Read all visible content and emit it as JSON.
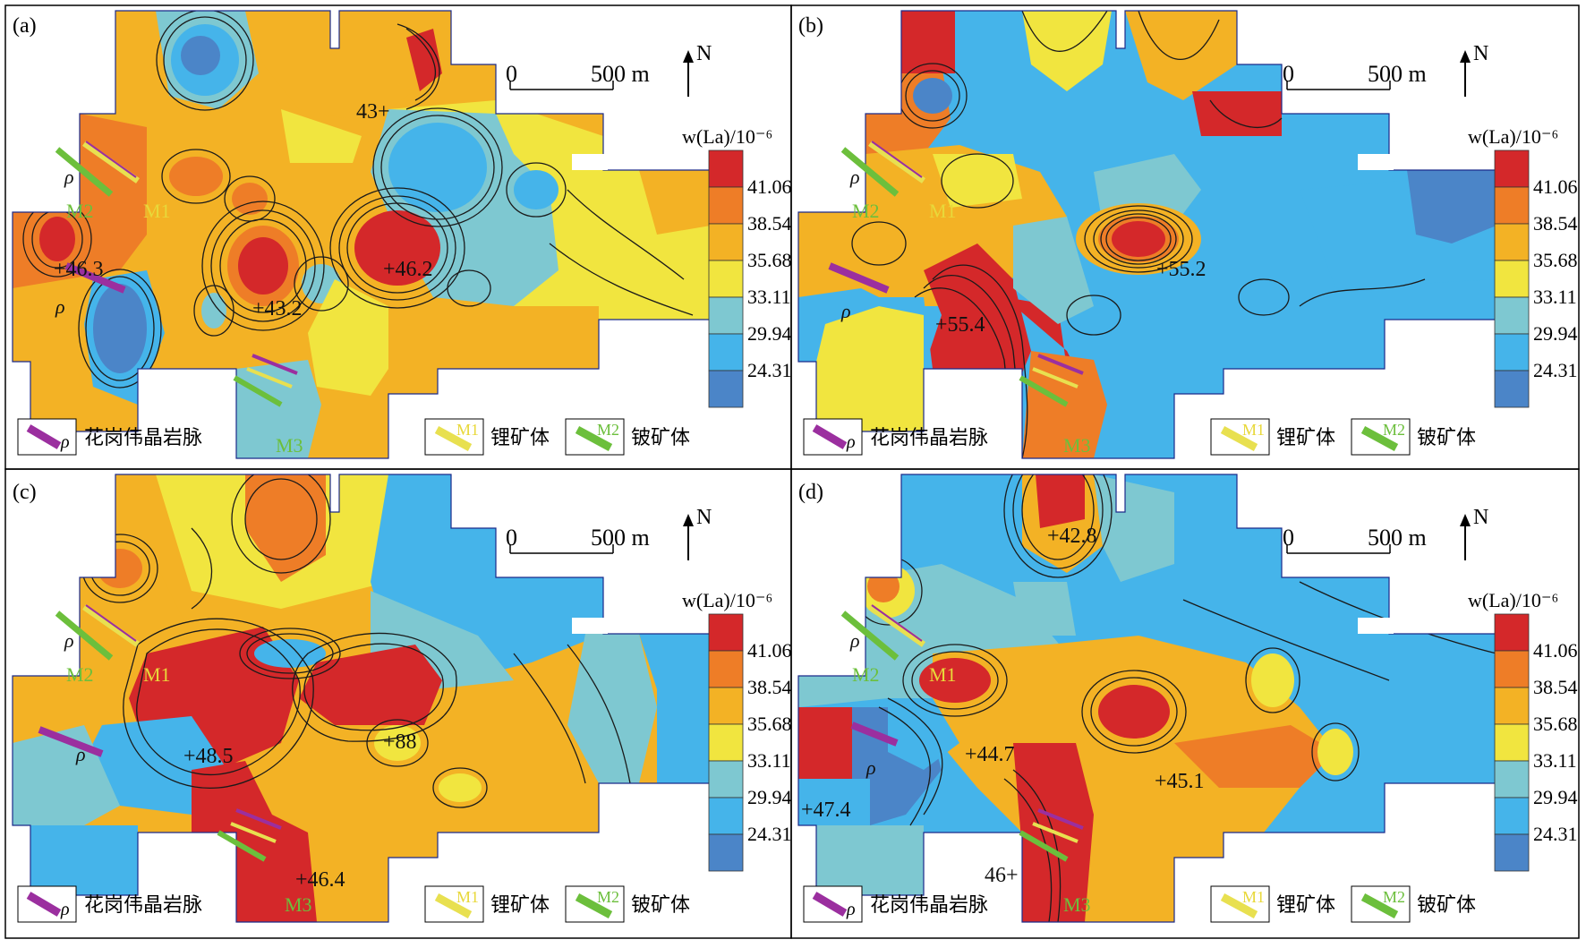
{
  "panels": [
    {
      "label": "(a)",
      "peaks": [
        {
          "value": "+46.3"
        },
        {
          "value": "+43.2"
        },
        {
          "value": "+46.2"
        },
        {
          "value": "43+"
        }
      ]
    },
    {
      "label": "(b)",
      "peaks": [
        {
          "value": "+55.4"
        },
        {
          "value": "+55.2"
        }
      ]
    },
    {
      "label": "(c)",
      "peaks": [
        {
          "value": "+48.5"
        },
        {
          "value": "+88"
        },
        {
          "value": "+46.4"
        }
      ]
    },
    {
      "label": "(d)",
      "peaks": [
        {
          "value": "+42.8"
        },
        {
          "value": "+44.7"
        },
        {
          "value": "+45.1"
        },
        {
          "value": "+47.4"
        },
        {
          "value": "46+"
        }
      ]
    }
  ],
  "scale_bar": {
    "zero": "0",
    "value": "500 m",
    "north": "N"
  },
  "colorbar": {
    "title": "w(La)/10⁻⁶",
    "ticks": [
      "41.06",
      "38.54",
      "35.68",
      "33.11",
      "29.94",
      "24.31"
    ],
    "colors": [
      "#d4282a",
      "#ee7d27",
      "#f3b225",
      "#f1e53f",
      "#7ec8d1",
      "#45b4ea",
      "#4b85c8"
    ]
  },
  "legend": {
    "pegmatite_label": "花岗伟晶岩脉",
    "pegmatite_symbol": "ρ",
    "li_code": "M1",
    "li_label": "锂矿体",
    "be_code": "M2",
    "be_label": "铍矿体"
  },
  "orebody_labels": {
    "m1": "M1",
    "m2": "M2",
    "m3": "M3",
    "rho": "ρ"
  }
}
